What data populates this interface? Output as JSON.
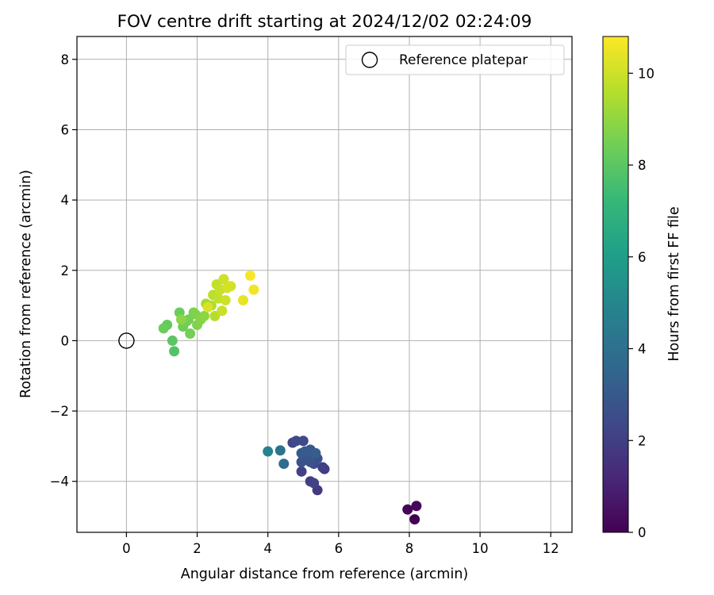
{
  "chart_data": {
    "type": "scatter",
    "title": "FOV centre drift starting at 2024/12/02 02:24:09",
    "xlabel": "Angular distance from reference (arcmin)",
    "ylabel": "Rotation from reference (arcmin)",
    "xlim": [
      -1.4,
      12.6
    ],
    "ylim": [
      -5.45,
      8.65
    ],
    "xticks": [
      0,
      2,
      4,
      6,
      8,
      10,
      12
    ],
    "yticks": [
      -4,
      -2,
      0,
      2,
      4,
      6,
      8
    ],
    "xtick_labels": [
      "0",
      "2",
      "4",
      "6",
      "8",
      "10",
      "12"
    ],
    "ytick_labels": [
      "−4",
      "−2",
      "0",
      "2",
      "4",
      "6",
      "8"
    ],
    "grid": true,
    "legend": {
      "placement": "top-right",
      "entries": [
        {
          "label": "Reference platepar",
          "marker": "open-circle"
        }
      ]
    },
    "reference_point": {
      "x": 0,
      "y": 0
    },
    "colorbar": {
      "label": "Hours from first FF file",
      "colormap": "viridis",
      "range": [
        0,
        10.8
      ],
      "ticks": [
        0,
        2,
        4,
        6,
        8,
        10
      ],
      "tick_labels": [
        "0",
        "2",
        "4",
        "6",
        "8",
        "10"
      ]
    },
    "series": [
      {
        "points": [
          {
            "x": 8.15,
            "y": -5.08,
            "t": 0.0
          },
          {
            "x": 7.95,
            "y": -4.8,
            "t": 0.1
          },
          {
            "x": 8.2,
            "y": -4.7,
            "t": 0.2
          },
          {
            "x": 5.4,
            "y": -4.25,
            "t": 1.8
          },
          {
            "x": 5.6,
            "y": -3.65,
            "t": 1.9
          },
          {
            "x": 5.55,
            "y": -3.6,
            "t": 2.0
          },
          {
            "x": 5.2,
            "y": -4.0,
            "t": 2.0
          },
          {
            "x": 5.3,
            "y": -4.05,
            "t": 2.1
          },
          {
            "x": 4.95,
            "y": -3.72,
            "t": 2.1
          },
          {
            "x": 4.7,
            "y": -2.9,
            "t": 2.3
          },
          {
            "x": 4.8,
            "y": -2.85,
            "t": 2.4
          },
          {
            "x": 5.0,
            "y": -2.85,
            "t": 2.4
          },
          {
            "x": 5.3,
            "y": -3.5,
            "t": 2.5
          },
          {
            "x": 5.4,
            "y": -3.35,
            "t": 2.6
          },
          {
            "x": 5.2,
            "y": -3.45,
            "t": 2.7
          },
          {
            "x": 4.95,
            "y": -3.45,
            "t": 2.7
          },
          {
            "x": 5.1,
            "y": -3.3,
            "t": 2.8
          },
          {
            "x": 5.2,
            "y": -3.1,
            "t": 2.9
          },
          {
            "x": 5.3,
            "y": -3.2,
            "t": 3.0
          },
          {
            "x": 4.95,
            "y": -3.2,
            "t": 3.0
          },
          {
            "x": 5.05,
            "y": -3.15,
            "t": 3.1
          },
          {
            "x": 5.35,
            "y": -3.2,
            "t": 3.2
          },
          {
            "x": 4.45,
            "y": -3.5,
            "t": 3.8
          },
          {
            "x": 4.35,
            "y": -3.12,
            "t": 4.1
          },
          {
            "x": 4.0,
            "y": -3.15,
            "t": 4.8
          },
          {
            "x": 1.35,
            "y": -0.3,
            "t": 7.8
          },
          {
            "x": 1.3,
            "y": 0.0,
            "t": 8.0
          },
          {
            "x": 1.15,
            "y": 0.45,
            "t": 8.2
          },
          {
            "x": 1.05,
            "y": 0.35,
            "t": 8.3
          },
          {
            "x": 1.5,
            "y": 0.8,
            "t": 8.3
          },
          {
            "x": 1.6,
            "y": 0.4,
            "t": 8.4
          },
          {
            "x": 1.7,
            "y": 0.55,
            "t": 8.4
          },
          {
            "x": 1.8,
            "y": 0.2,
            "t": 8.5
          },
          {
            "x": 1.75,
            "y": 0.6,
            "t": 8.5
          },
          {
            "x": 1.9,
            "y": 0.8,
            "t": 8.6
          },
          {
            "x": 1.95,
            "y": 0.75,
            "t": 8.7
          },
          {
            "x": 2.0,
            "y": 0.45,
            "t": 8.7
          },
          {
            "x": 2.1,
            "y": 0.6,
            "t": 8.8
          },
          {
            "x": 2.2,
            "y": 0.7,
            "t": 8.9
          },
          {
            "x": 1.55,
            "y": 0.6,
            "t": 8.9
          },
          {
            "x": 2.25,
            "y": 1.05,
            "t": 9.3
          },
          {
            "x": 2.4,
            "y": 1.0,
            "t": 9.5
          },
          {
            "x": 2.5,
            "y": 0.7,
            "t": 9.6
          },
          {
            "x": 2.45,
            "y": 1.3,
            "t": 9.7
          },
          {
            "x": 2.55,
            "y": 1.6,
            "t": 9.8
          },
          {
            "x": 2.6,
            "y": 1.2,
            "t": 9.8
          },
          {
            "x": 2.65,
            "y": 1.45,
            "t": 9.9
          },
          {
            "x": 2.7,
            "y": 0.85,
            "t": 9.9
          },
          {
            "x": 2.75,
            "y": 1.75,
            "t": 10.0
          },
          {
            "x": 2.8,
            "y": 1.15,
            "t": 10.0
          },
          {
            "x": 2.85,
            "y": 1.5,
            "t": 10.1
          },
          {
            "x": 2.95,
            "y": 1.55,
            "t": 10.1
          },
          {
            "x": 2.3,
            "y": 0.95,
            "t": 10.2
          },
          {
            "x": 3.3,
            "y": 1.15,
            "t": 10.4
          },
          {
            "x": 3.6,
            "y": 1.45,
            "t": 10.6
          },
          {
            "x": 3.5,
            "y": 1.85,
            "t": 10.7
          }
        ]
      }
    ]
  }
}
